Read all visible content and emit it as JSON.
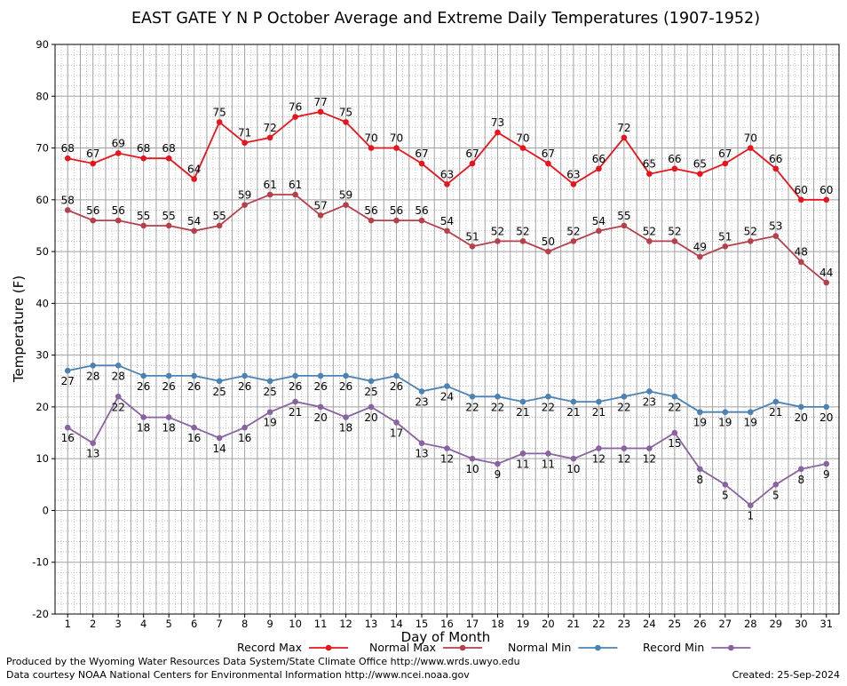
{
  "chart_data": {
    "type": "line",
    "title": "EAST GATE Y N P October Average and Extreme Daily Temperatures (1907-1952)",
    "xlabel": "Day of Month",
    "ylabel": "Temperature (F)",
    "ylim": [
      -20,
      90
    ],
    "yticks": [
      -20,
      -10,
      0,
      10,
      20,
      30,
      40,
      50,
      60,
      70,
      80,
      90
    ],
    "grid": true,
    "legend_position": "bottom",
    "x": [
      1,
      2,
      3,
      4,
      5,
      6,
      7,
      8,
      9,
      10,
      11,
      12,
      13,
      14,
      15,
      16,
      17,
      18,
      19,
      20,
      21,
      22,
      23,
      24,
      25,
      26,
      27,
      28,
      29,
      30,
      31
    ],
    "series": [
      {
        "name": "Record Max",
        "color": "#e8141c",
        "values": [
          68,
          67,
          69,
          68,
          68,
          64,
          75,
          71,
          72,
          76,
          77,
          75,
          70,
          70,
          67,
          63,
          67,
          73,
          70,
          67,
          63,
          66,
          72,
          65,
          66,
          65,
          67,
          70,
          66,
          60,
          60
        ],
        "label_position": "above"
      },
      {
        "name": "Normal Max",
        "color": "#b5404a",
        "values": [
          58,
          56,
          56,
          55,
          55,
          54,
          55,
          59,
          61,
          61,
          57,
          59,
          56,
          56,
          56,
          54,
          51,
          52,
          52,
          50,
          52,
          54,
          55,
          52,
          52,
          49,
          51,
          52,
          53,
          48,
          44
        ],
        "label_position": "above"
      },
      {
        "name": "Normal Min",
        "color": "#4a82b4",
        "values": [
          27,
          28,
          28,
          26,
          26,
          26,
          25,
          26,
          25,
          26,
          26,
          26,
          25,
          26,
          23,
          24,
          22,
          22,
          21,
          22,
          21,
          21,
          22,
          23,
          22,
          19,
          19,
          19,
          21,
          20,
          20
        ],
        "label_position": "below"
      },
      {
        "name": "Record Min",
        "color": "#8a62a2",
        "values": [
          16,
          13,
          22,
          18,
          18,
          16,
          14,
          16,
          19,
          21,
          20,
          18,
          20,
          17,
          13,
          12,
          10,
          9,
          11,
          11,
          10,
          12,
          12,
          12,
          15,
          8,
          5,
          1,
          5,
          8,
          9
        ],
        "label_position": "below"
      }
    ]
  },
  "footer": {
    "produced_by": "Produced by the Wyoming Water Resources Data System/State Climate Office http://www.wrds.uwyo.edu",
    "courtesy": "Data courtesy NOAA National Centers for Environmental Information http://www.ncei.noaa.gov",
    "created": "Created:  25-Sep-2024"
  }
}
